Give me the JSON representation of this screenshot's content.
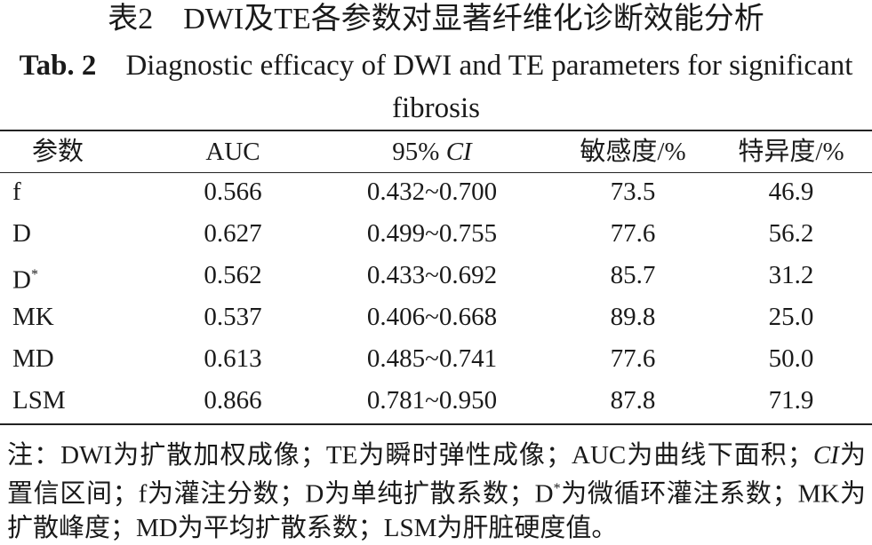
{
  "title_cn": "表2　DWI及TE各参数对显著纤维化诊断效能分析",
  "title_en": {
    "label": "Tab. 2",
    "text": "Diagnostic efficacy of DWI and TE parameters for significant fibrosis"
  },
  "table": {
    "headers": [
      "参数",
      "AUC",
      [
        "95%",
        "CI"
      ],
      "敏感度/%",
      "特异度/%"
    ],
    "rows": [
      [
        "f",
        "0.566",
        "0.432~0.700",
        "73.5",
        "46.9"
      ],
      [
        "D",
        "0.627",
        "0.499~0.755",
        "77.6",
        "56.2"
      ],
      [
        [
          "D",
          "*"
        ],
        "0.562",
        "0.433~0.692",
        "85.7",
        "31.2"
      ],
      [
        "MK",
        "0.537",
        "0.406~0.668",
        "89.8",
        "25.0"
      ],
      [
        "MD",
        "0.613",
        "0.485~0.741",
        "77.6",
        "50.0"
      ],
      [
        "LSM",
        "0.866",
        "0.781~0.950",
        "87.8",
        "71.9"
      ]
    ]
  },
  "note": [
    "注：DWI为扩散加权成像；TE为瞬时弹性成像；AUC为曲线下面积；",
    "CI",
    "为置信区间；f为灌注分数；D为单纯扩散系数；D",
    "*",
    "为微循环灌注系数；MK为扩散峰度；MD为平均扩散系数；LSM为肝脏硬度值。"
  ]
}
